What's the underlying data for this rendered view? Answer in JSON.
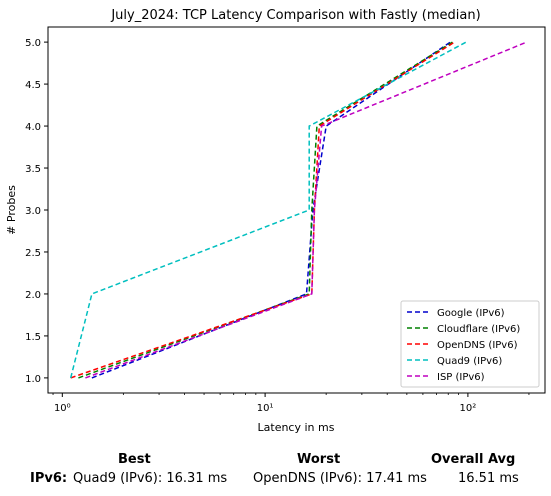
{
  "chart_data": {
    "type": "line",
    "title": "July_2024: TCP Latency Comparison with Fastly (median)",
    "xlabel": "Latency in ms",
    "ylabel": "# Probes",
    "xscale": "log",
    "xlim": [
      0.85,
      240
    ],
    "ylim": [
      0.82,
      5.18
    ],
    "xticks": [
      1,
      10,
      100
    ],
    "xtick_labels": [
      "10⁰",
      "10¹",
      "10²"
    ],
    "yticks": [
      1.0,
      1.5,
      2.0,
      2.5,
      3.0,
      3.5,
      4.0,
      4.5,
      5.0
    ],
    "ytick_labels": [
      "1.0",
      "1.5",
      "2.0",
      "2.5",
      "3.0",
      "3.5",
      "4.0",
      "4.5",
      "5.0"
    ],
    "grid": false,
    "legend_position": "lower-right",
    "line_style": "dashed",
    "series": [
      {
        "name": "Google (IPv6)",
        "color": "#0000cc",
        "x": [
          1.4,
          16.0,
          17.2,
          20.0,
          82.0
        ],
        "y": [
          1,
          2,
          3,
          4,
          5
        ]
      },
      {
        "name": "Cloudflare (IPv6)",
        "color": "#008000",
        "x": [
          1.2,
          16.5,
          17.0,
          18.0,
          84.0
        ],
        "y": [
          1,
          2,
          3,
          4,
          5
        ]
      },
      {
        "name": "OpenDNS (IPv6)",
        "color": "#ff0000",
        "x": [
          1.1,
          17.0,
          17.5,
          18.5,
          86.0
        ],
        "y": [
          1,
          2,
          3,
          4,
          5
        ]
      },
      {
        "name": "Quad9 (IPv6)",
        "color": "#00bfbf",
        "x": [
          1.1,
          1.4,
          16.5,
          16.5,
          98.0
        ],
        "y": [
          1,
          2,
          3,
          4,
          5
        ]
      },
      {
        "name": "ISP (IPv6)",
        "color": "#bf00bf",
        "x": [
          1.3,
          17.0,
          17.5,
          19.0,
          195.0
        ],
        "y": [
          1,
          2,
          3,
          4,
          5
        ]
      }
    ]
  },
  "summary": {
    "best_header": "Best",
    "worst_header": "Worst",
    "avg_header": "Overall Avg",
    "row_label": "IPv6:",
    "best_value": "Quad9 (IPv6): 16.31 ms",
    "worst_value": "OpenDNS (IPv6): 17.41 ms",
    "avg_value": "16.51 ms"
  }
}
